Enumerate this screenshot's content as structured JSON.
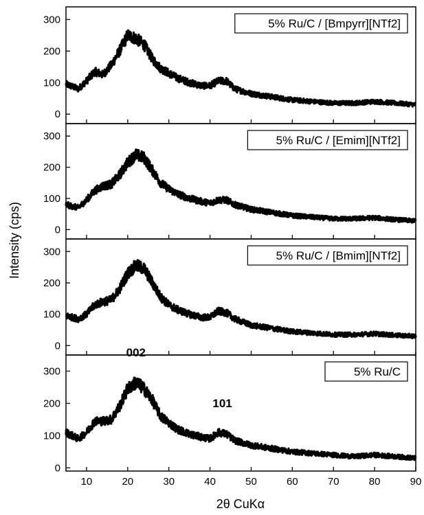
{
  "chart_data": {
    "type": "line",
    "xlabel": "2θ CuKα",
    "ylabel": "Intensity (cps)",
    "xlim": [
      5,
      90
    ],
    "x_ticks": [
      10,
      20,
      30,
      40,
      50,
      60,
      70,
      80,
      90
    ],
    "grid": false,
    "panels": [
      {
        "label": "5% Ru/C / [Bmpyrr][NTf2]",
        "ylim": [
          -30,
          340
        ],
        "y_ticks": [
          0,
          100,
          200,
          300
        ],
        "x": [
          5,
          8,
          10,
          12,
          14,
          16,
          18,
          20,
          22,
          24,
          26,
          28,
          30,
          32,
          35,
          38,
          40,
          42,
          44,
          46,
          50,
          55,
          60,
          65,
          70,
          75,
          80,
          85,
          90
        ],
        "y": [
          95,
          80,
          105,
          135,
          125,
          155,
          200,
          250,
          240,
          220,
          175,
          145,
          130,
          115,
          100,
          90,
          90,
          105,
          105,
          80,
          65,
          55,
          45,
          40,
          35,
          35,
          40,
          35,
          30
        ]
      },
      {
        "label": "5% Ru/C / [Emim][NTf2]",
        "ylim": [
          -30,
          340
        ],
        "y_ticks": [
          0,
          100,
          200,
          300
        ],
        "x": [
          5,
          8,
          10,
          12,
          14,
          16,
          18,
          20,
          22,
          24,
          26,
          28,
          30,
          32,
          35,
          38,
          40,
          42,
          44,
          46,
          50,
          55,
          60,
          65,
          70,
          75,
          80,
          85,
          90
        ],
        "y": [
          80,
          70,
          95,
          125,
          140,
          145,
          175,
          215,
          240,
          230,
          190,
          150,
          130,
          115,
          100,
          90,
          85,
          95,
          95,
          80,
          65,
          55,
          45,
          40,
          35,
          35,
          38,
          32,
          28
        ]
      },
      {
        "label": "5% Ru/C / [Bmim][NTf2]",
        "ylim": [
          -30,
          340
        ],
        "y_ticks": [
          0,
          100,
          200,
          300
        ],
        "x": [
          5,
          8,
          10,
          12,
          14,
          16,
          18,
          20,
          22,
          24,
          26,
          28,
          30,
          32,
          35,
          38,
          40,
          42,
          44,
          46,
          50,
          55,
          60,
          65,
          70,
          75,
          80,
          85,
          90
        ],
        "y": [
          95,
          85,
          100,
          130,
          140,
          145,
          180,
          230,
          255,
          245,
          200,
          155,
          130,
          115,
          100,
          90,
          90,
          110,
          105,
          85,
          65,
          55,
          45,
          40,
          35,
          35,
          38,
          33,
          30
        ]
      },
      {
        "label": "5% Ru/C",
        "ylim": [
          -10,
          350
        ],
        "y_ticks": [
          0,
          100,
          200,
          300
        ],
        "x": [
          5,
          8,
          10,
          12,
          14,
          16,
          18,
          20,
          22,
          24,
          26,
          28,
          30,
          32,
          35,
          38,
          40,
          42,
          44,
          46,
          50,
          55,
          60,
          65,
          70,
          75,
          80,
          85,
          90
        ],
        "y": [
          110,
          90,
          110,
          145,
          145,
          150,
          190,
          245,
          265,
          245,
          210,
          160,
          140,
          120,
          105,
          95,
          90,
          110,
          105,
          85,
          70,
          60,
          50,
          45,
          40,
          35,
          40,
          35,
          30
        ],
        "annotations": [
          {
            "text": "002",
            "x": 22
          },
          {
            "text": "101",
            "x": 43
          }
        ]
      }
    ]
  }
}
